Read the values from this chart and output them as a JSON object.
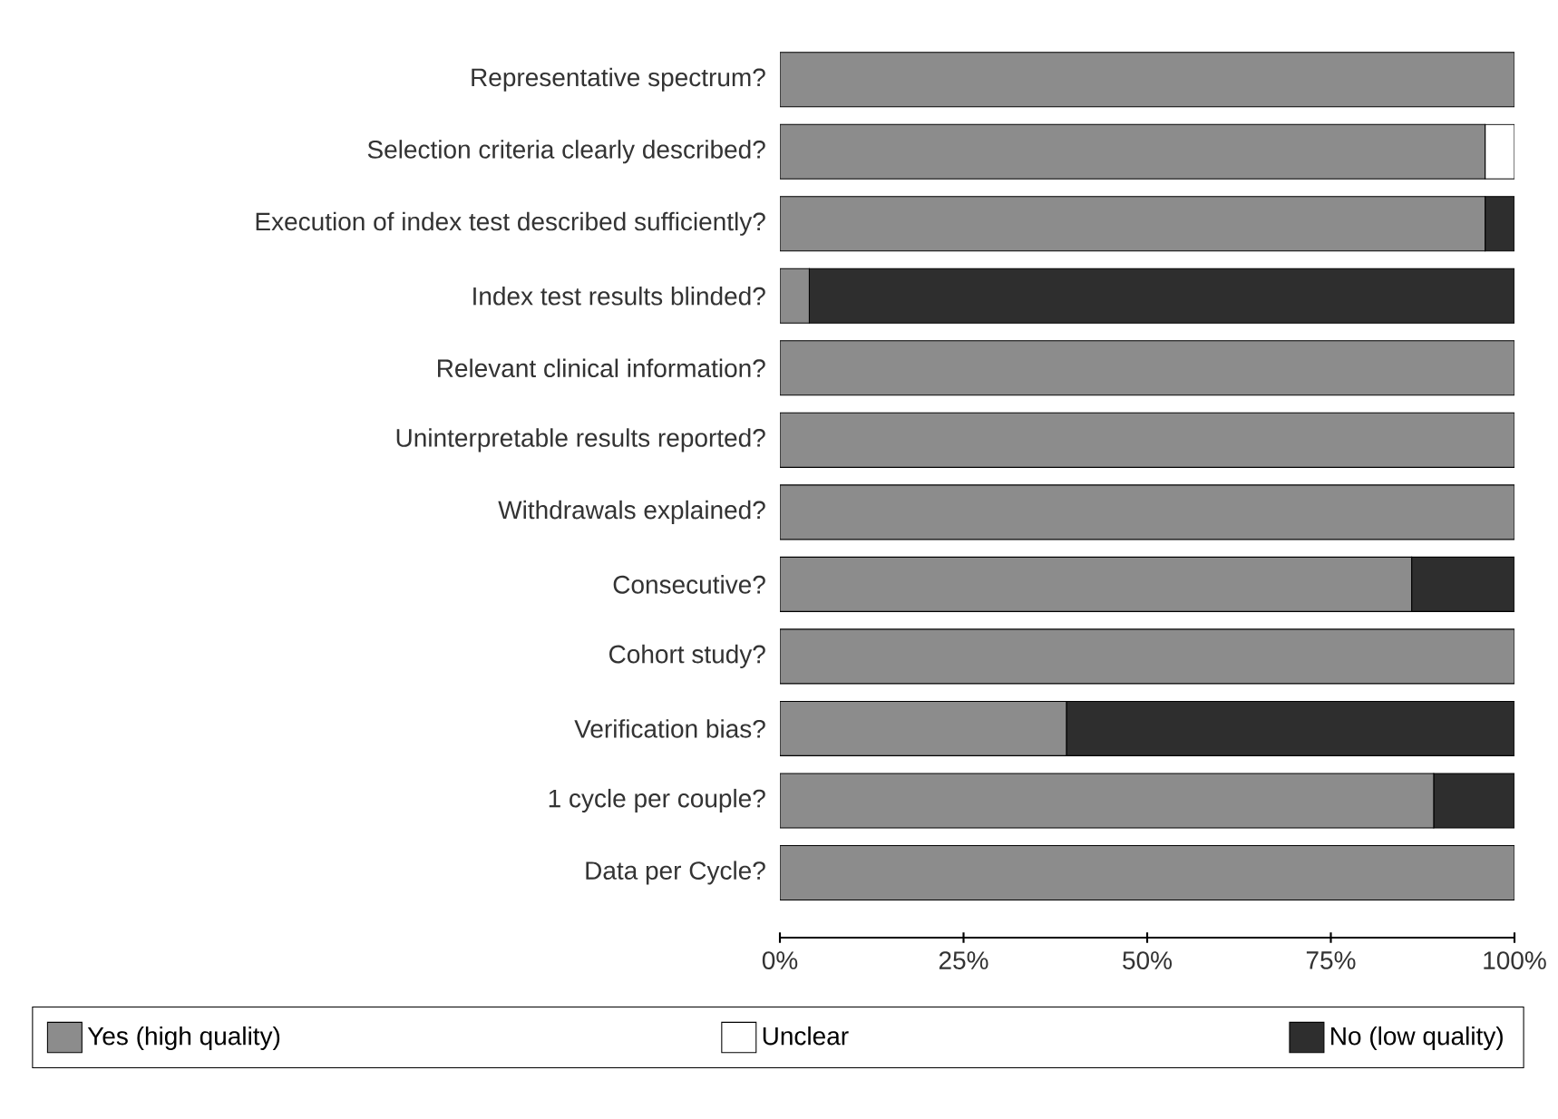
{
  "chart_data": {
    "type": "bar",
    "orientation": "horizontal",
    "stacked": true,
    "categories": [
      "Representative spectrum?",
      "Selection criteria clearly described?",
      "Execution of index test described sufficiently?",
      "Index test results blinded?",
      "Relevant clinical information?",
      "Uninterpretable results reported?",
      "Withdrawals explained?",
      "Consecutive?",
      "Cohort study?",
      "Verification bias?",
      "1 cycle per couple?",
      "Data per Cycle?"
    ],
    "series": [
      {
        "name": "Yes (high quality)",
        "color": "#8c8c8c",
        "values": [
          100,
          96,
          96,
          4,
          100,
          100,
          100,
          86,
          100,
          39,
          89,
          100
        ]
      },
      {
        "name": "Unclear",
        "color": "#ffffff",
        "values": [
          0,
          4,
          0,
          0,
          0,
          0,
          0,
          0,
          0,
          0,
          0,
          0
        ]
      },
      {
        "name": "No (low quality)",
        "color": "#2e2e2e",
        "values": [
          0,
          0,
          4,
          96,
          0,
          0,
          0,
          14,
          0,
          61,
          11,
          0
        ]
      }
    ],
    "xlim": [
      0,
      100
    ],
    "xticks": [
      {
        "value": 0,
        "label": "0%"
      },
      {
        "value": 25,
        "label": "25%"
      },
      {
        "value": 50,
        "label": "50%"
      },
      {
        "value": 75,
        "label": "75%"
      },
      {
        "value": 100,
        "label": "100%"
      }
    ],
    "legend": "bottom",
    "grid": false
  }
}
